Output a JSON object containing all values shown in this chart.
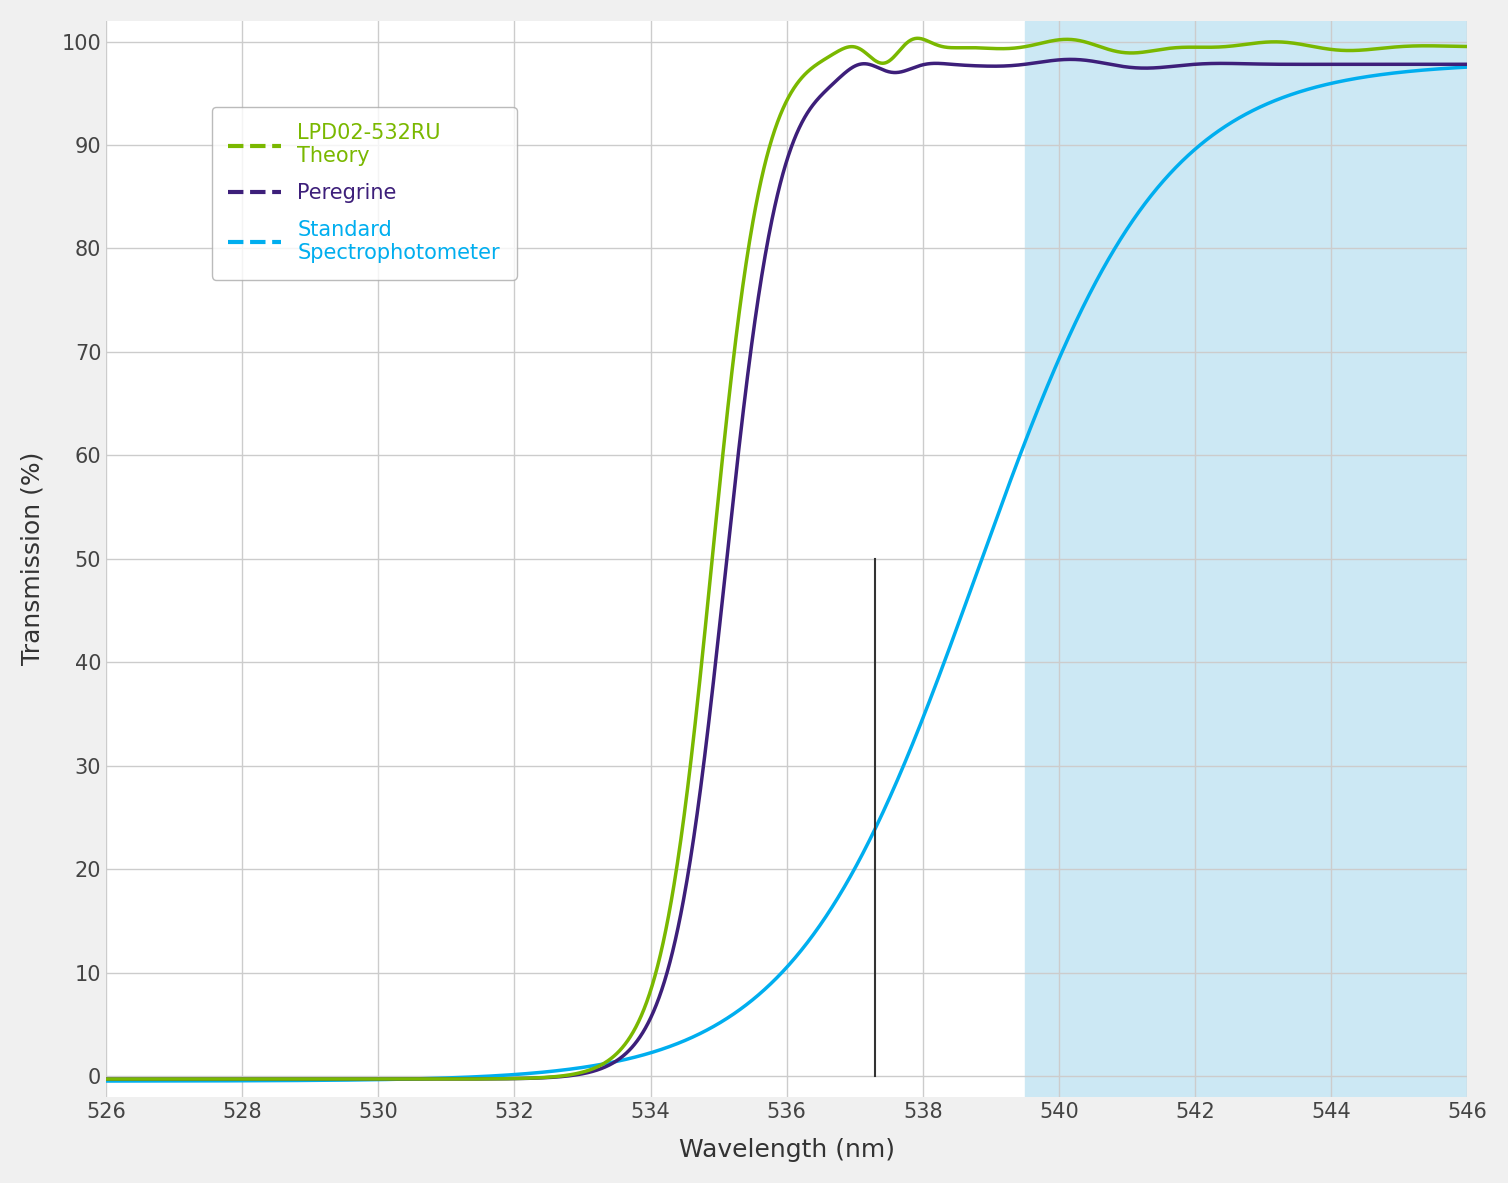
{
  "xlim": [
    526,
    546
  ],
  "ylim": [
    -2,
    102
  ],
  "xticks": [
    526,
    528,
    530,
    532,
    534,
    536,
    538,
    540,
    542,
    544,
    546
  ],
  "yticks": [
    0,
    10,
    20,
    30,
    40,
    50,
    60,
    70,
    80,
    90,
    100
  ],
  "xlabel": "Wavelength (nm)",
  "ylabel": "Transmission (%)",
  "bg_color": "#f0f0f0",
  "plot_bg_color": "#ffffff",
  "grid_color": "#cccccc",
  "shaded_region_start": 539.5,
  "shaded_region_color": "#cce8f4",
  "vertical_line_x": 537.3,
  "vertical_line_color": "#333333",
  "theory_color": "#7ab800",
  "peregrine_color": "#3d1f7a",
  "standard_color": "#00aeef",
  "legend_label_0": "LPD02-532RU\nTheory",
  "legend_label_1": "Peregrine",
  "legend_label_2": "Standard\nSpectrophotometer",
  "figsize": [
    15.08,
    11.83
  ],
  "dpi": 100
}
